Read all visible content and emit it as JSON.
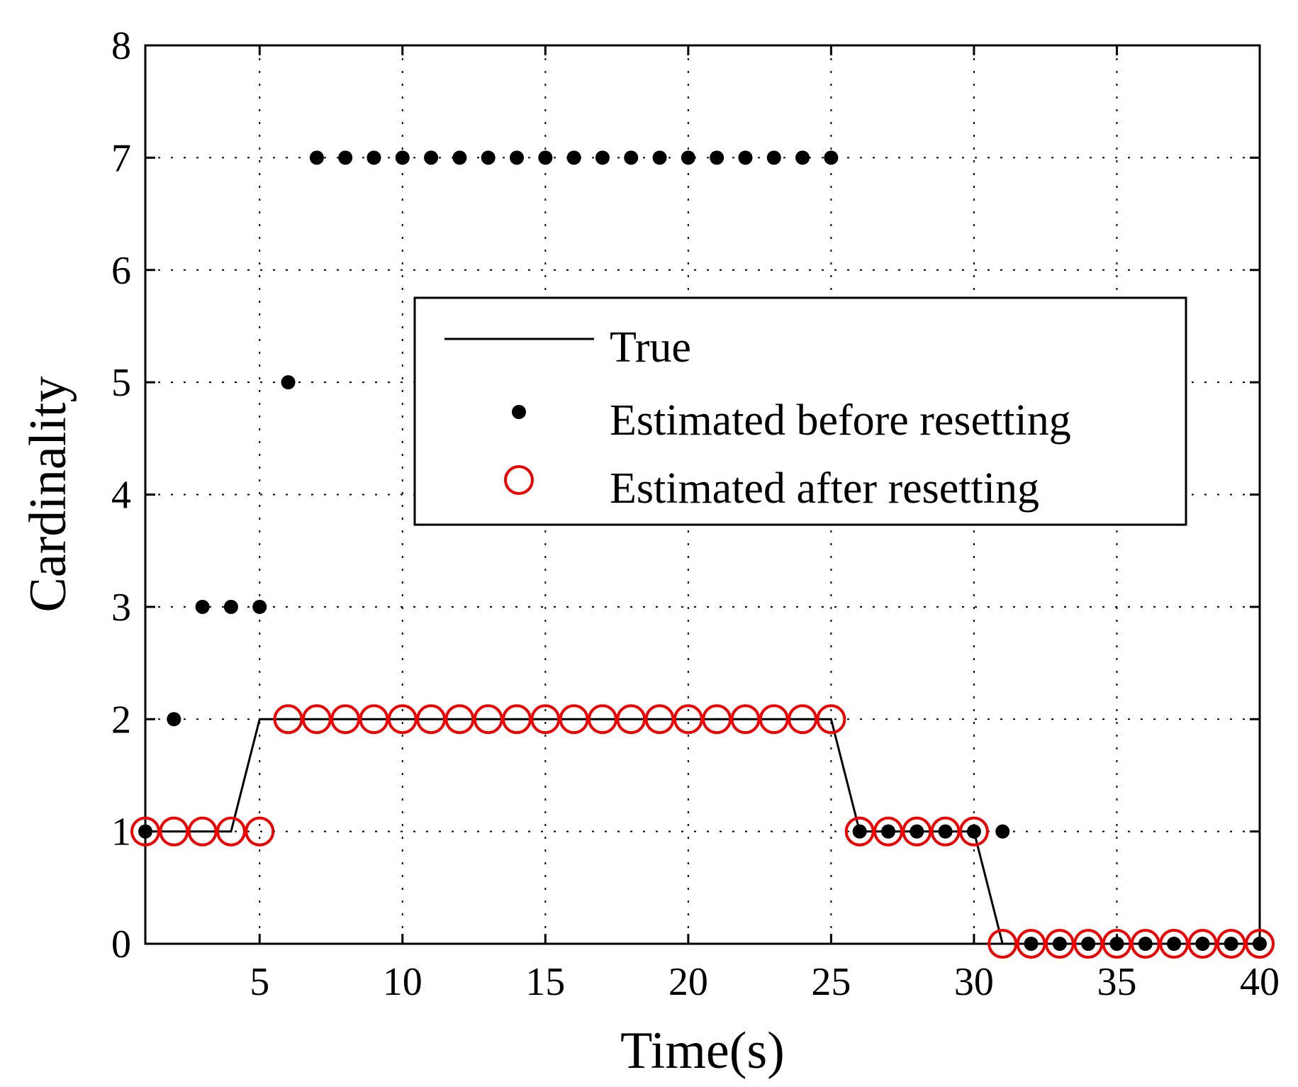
{
  "chart_data": {
    "type": "line",
    "title": "",
    "xlabel": "Time(s)",
    "ylabel": "Cardinality",
    "xlim": [
      1,
      40
    ],
    "ylim": [
      0,
      8
    ],
    "xticks": [
      5,
      10,
      15,
      20,
      25,
      30,
      35,
      40
    ],
    "yticks": [
      0,
      1,
      2,
      3,
      4,
      5,
      6,
      7,
      8
    ],
    "grid": true,
    "legend_position": "center-right",
    "colors": {
      "true": "#000000",
      "before": "#000000",
      "after": "#ee0000"
    },
    "x": [
      1,
      2,
      3,
      4,
      5,
      6,
      7,
      8,
      9,
      10,
      11,
      12,
      13,
      14,
      15,
      16,
      17,
      18,
      19,
      20,
      21,
      22,
      23,
      24,
      25,
      26,
      27,
      28,
      29,
      30,
      31,
      32,
      33,
      34,
      35,
      36,
      37,
      38,
      39,
      40
    ],
    "series": [
      {
        "name": "True",
        "style": "line",
        "values": [
          1,
          1,
          1,
          1,
          2,
          2,
          2,
          2,
          2,
          2,
          2,
          2,
          2,
          2,
          2,
          2,
          2,
          2,
          2,
          2,
          2,
          2,
          2,
          2,
          2,
          1,
          1,
          1,
          1,
          1,
          0,
          0,
          0,
          0,
          0,
          0,
          0,
          0,
          0,
          0
        ]
      },
      {
        "name": "Estimated before resetting",
        "style": "dot",
        "values": [
          1,
          2,
          3,
          3,
          3,
          5,
          7,
          7,
          7,
          7,
          7,
          7,
          7,
          7,
          7,
          7,
          7,
          7,
          7,
          7,
          7,
          7,
          7,
          7,
          7,
          1,
          1,
          1,
          1,
          1,
          1,
          0,
          0,
          0,
          0,
          0,
          0,
          0,
          0,
          0
        ]
      },
      {
        "name": "Estimated after resetting",
        "style": "circle",
        "values": [
          1,
          1,
          1,
          1,
          1,
          2,
          2,
          2,
          2,
          2,
          2,
          2,
          2,
          2,
          2,
          2,
          2,
          2,
          2,
          2,
          2,
          2,
          2,
          2,
          2,
          1,
          1,
          1,
          1,
          1,
          0,
          0,
          0,
          0,
          0,
          0,
          0,
          0,
          0,
          0
        ]
      }
    ]
  }
}
